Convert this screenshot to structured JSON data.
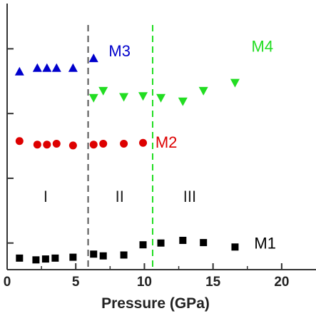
{
  "chart_data": {
    "type": "scatter",
    "title": "",
    "xlabel": "Pressure (GPa)",
    "ylabel": "",
    "xlim": [
      0,
      22.5
    ],
    "x_ticks": [
      0,
      5,
      10,
      15,
      20
    ],
    "grid": false,
    "legend": "none",
    "series": [
      {
        "name": "M1",
        "marker": "square",
        "color": "#000000",
        "points": [
          [
            0.9,
            1.3
          ],
          [
            2.1,
            1.1
          ],
          [
            2.8,
            1.2
          ],
          [
            3.5,
            1.3
          ],
          [
            4.8,
            1.4
          ],
          [
            6.3,
            1.75
          ],
          [
            7.0,
            1.55
          ],
          [
            8.5,
            1.65
          ],
          [
            9.9,
            2.8
          ],
          [
            11.2,
            3.0
          ],
          [
            12.8,
            3.3
          ],
          [
            14.3,
            3.05
          ],
          [
            16.6,
            2.55
          ]
        ]
      },
      {
        "name": "M2",
        "marker": "circle",
        "color": "#dd0000",
        "points": [
          [
            0.9,
            14.5
          ],
          [
            2.2,
            14.1
          ],
          [
            2.9,
            14.1
          ],
          [
            3.6,
            14.2
          ],
          [
            4.8,
            14.0
          ],
          [
            6.3,
            14.1
          ],
          [
            7.0,
            14.2
          ],
          [
            8.5,
            14.2
          ],
          [
            9.9,
            14.3
          ]
        ]
      },
      {
        "name": "M3",
        "marker": "triangle-up",
        "color": "#0000cc",
        "points": [
          [
            0.9,
            22.3
          ],
          [
            2.2,
            22.7
          ],
          [
            2.9,
            22.7
          ],
          [
            3.6,
            22.7
          ],
          [
            4.8,
            22.7
          ],
          [
            6.3,
            23.8
          ]
        ]
      },
      {
        "name": "M4",
        "marker": "triangle-down",
        "color": "#22dd22",
        "points": [
          [
            6.3,
            19.4
          ],
          [
            7.0,
            20.2
          ],
          [
            8.5,
            19.5
          ],
          [
            9.9,
            19.6
          ],
          [
            11.2,
            19.4
          ],
          [
            12.8,
            19.0
          ],
          [
            14.3,
            20.2
          ],
          [
            16.6,
            21.1
          ]
        ]
      }
    ],
    "annotations": [
      {
        "text": "M1",
        "x": 18.0,
        "y": 3.0,
        "color": "#000000"
      },
      {
        "text": "M2",
        "x": 10.8,
        "y": 14.4,
        "color": "#dd0000"
      },
      {
        "text": "M3",
        "x": 7.4,
        "y": 24.7,
        "color": "#0000cc"
      },
      {
        "text": "M4",
        "x": 17.8,
        "y": 25.2,
        "color": "#22dd22"
      }
    ],
    "regions": [
      {
        "label": "I",
        "x": 2.8
      },
      {
        "label": "II",
        "x": 8.2
      },
      {
        "label": "III",
        "x": 13.3
      }
    ],
    "vertical_lines": [
      {
        "x": 5.9,
        "color": "#555555",
        "style": "dashed"
      },
      {
        "x": 10.6,
        "color": "#22dd22",
        "style": "dashed"
      }
    ]
  }
}
